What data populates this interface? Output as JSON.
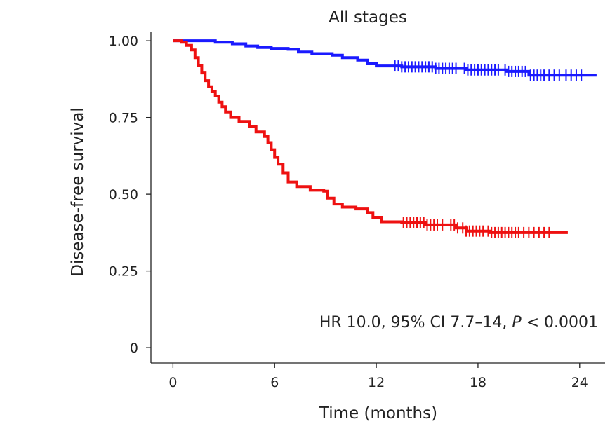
{
  "chart_data": {
    "type": "line",
    "subtype": "kaplan-meier step plot",
    "title": "All stages",
    "xlabel": "Time (months)",
    "ylabel": "Disease-free survival",
    "xlim": [
      -1.3,
      25.5
    ],
    "ylim": [
      -0.05,
      1.03
    ],
    "x_ticks": [
      0,
      6,
      12,
      18,
      24
    ],
    "y_ticks": [
      {
        "value": 1.0,
        "label": "1.00"
      },
      {
        "value": 0.75,
        "label": "0.75"
      },
      {
        "value": 0.5,
        "label": "0.50"
      },
      {
        "value": 0.25,
        "label": "0.25"
      },
      {
        "value": 0,
        "label": "0"
      }
    ],
    "grid": false,
    "annotation": {
      "text_before": "HR 10.0, 95% CI 7.7–14, ",
      "text_italic": "P",
      "text_after": " < 0.0001"
    },
    "series": [
      {
        "color": "#1a1aff",
        "points": [
          [
            0,
            1.0
          ],
          [
            1.5,
            1.0
          ],
          [
            2.5,
            0.995
          ],
          [
            3.5,
            0.99
          ],
          [
            4.3,
            0.983
          ],
          [
            5.0,
            0.978
          ],
          [
            5.8,
            0.975
          ],
          [
            6.8,
            0.972
          ],
          [
            7.4,
            0.963
          ],
          [
            8.2,
            0.958
          ],
          [
            9.4,
            0.953
          ],
          [
            10.0,
            0.945
          ],
          [
            10.9,
            0.937
          ],
          [
            11.5,
            0.925
          ],
          [
            12.0,
            0.918
          ],
          [
            13.5,
            0.915
          ],
          [
            15.5,
            0.91
          ],
          [
            17.3,
            0.905
          ],
          [
            19.7,
            0.9
          ],
          [
            21.0,
            0.888
          ],
          [
            25.0,
            0.888
          ]
        ],
        "censor_x": [
          13.1,
          13.3,
          13.5,
          13.7,
          13.9,
          14.1,
          14.3,
          14.5,
          14.7,
          14.9,
          15.1,
          15.3,
          15.5,
          15.7,
          15.9,
          16.1,
          16.3,
          16.5,
          16.7,
          17.2,
          17.4,
          17.6,
          17.8,
          18.0,
          18.2,
          18.4,
          18.6,
          18.8,
          19.0,
          19.2,
          19.6,
          19.8,
          20.0,
          20.2,
          20.4,
          20.6,
          20.8,
          21.1,
          21.3,
          21.5,
          21.7,
          21.9,
          22.2,
          22.5,
          22.8,
          23.2,
          23.5,
          23.8,
          24.1
        ]
      },
      {
        "color": "#ee1111",
        "points": [
          [
            0,
            1.0
          ],
          [
            0.5,
            0.995
          ],
          [
            0.8,
            0.985
          ],
          [
            1.1,
            0.97
          ],
          [
            1.3,
            0.945
          ],
          [
            1.5,
            0.92
          ],
          [
            1.7,
            0.895
          ],
          [
            1.9,
            0.87
          ],
          [
            2.1,
            0.85
          ],
          [
            2.3,
            0.835
          ],
          [
            2.5,
            0.82
          ],
          [
            2.7,
            0.8
          ],
          [
            2.9,
            0.785
          ],
          [
            3.1,
            0.768
          ],
          [
            3.4,
            0.75
          ],
          [
            3.9,
            0.737
          ],
          [
            4.5,
            0.72
          ],
          [
            4.9,
            0.703
          ],
          [
            5.4,
            0.688
          ],
          [
            5.6,
            0.668
          ],
          [
            5.8,
            0.645
          ],
          [
            6.0,
            0.62
          ],
          [
            6.2,
            0.598
          ],
          [
            6.5,
            0.57
          ],
          [
            6.8,
            0.54
          ],
          [
            7.3,
            0.525
          ],
          [
            8.1,
            0.513
          ],
          [
            8.9,
            0.51
          ],
          [
            9.1,
            0.487
          ],
          [
            9.5,
            0.468
          ],
          [
            10.0,
            0.458
          ],
          [
            10.8,
            0.452
          ],
          [
            11.5,
            0.44
          ],
          [
            11.8,
            0.425
          ],
          [
            12.3,
            0.41
          ],
          [
            13.5,
            0.408
          ],
          [
            14.9,
            0.4
          ],
          [
            16.7,
            0.39
          ],
          [
            17.3,
            0.38
          ],
          [
            18.7,
            0.375
          ],
          [
            23.3,
            0.375
          ]
        ],
        "censor_x": [
          13.6,
          13.8,
          14.0,
          14.2,
          14.4,
          14.6,
          14.8,
          15.0,
          15.2,
          15.4,
          15.6,
          15.9,
          16.4,
          16.6,
          16.8,
          17.1,
          17.3,
          17.5,
          17.7,
          17.9,
          18.1,
          18.3,
          18.6,
          18.8,
          19.0,
          19.2,
          19.4,
          19.6,
          19.8,
          20.0,
          20.2,
          20.4,
          20.7,
          21.0,
          21.3,
          21.6,
          21.9,
          22.2
        ]
      }
    ]
  }
}
